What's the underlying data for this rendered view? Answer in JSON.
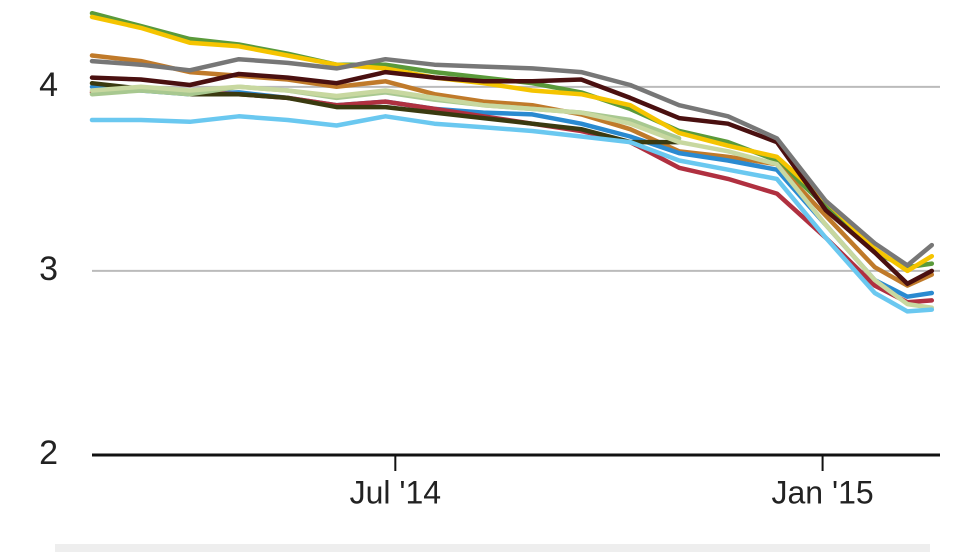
{
  "chart_data": {
    "type": "line",
    "x": [
      0,
      3,
      6,
      9,
      12,
      15,
      18,
      21,
      24,
      27,
      30,
      33,
      36,
      39,
      42,
      45,
      48,
      50,
      51.5
    ],
    "xlim": [
      0,
      52
    ],
    "xticks": [
      {
        "value": 18.6,
        "label": "Jul '14"
      },
      {
        "value": 44.8,
        "label": "Jan '15"
      }
    ],
    "ylim": [
      2,
      4.45
    ],
    "yticks": [
      2,
      3,
      4
    ],
    "grid": true,
    "series": [
      {
        "color": "#5a9a3a",
        "values": [
          4.4,
          4.33,
          4.26,
          4.23,
          4.18,
          4.12,
          4.12,
          4.08,
          4.05,
          4.02,
          3.97,
          3.88,
          3.76,
          3.7,
          3.6,
          3.35,
          3.1,
          3.02,
          3.04
        ]
      },
      {
        "color": "#f5c400",
        "values": [
          4.38,
          4.32,
          4.24,
          4.22,
          4.17,
          4.12,
          4.1,
          4.05,
          4.02,
          3.98,
          3.96,
          3.9,
          3.75,
          3.68,
          3.62,
          3.38,
          3.12,
          3.0,
          3.08
        ]
      },
      {
        "color": "#c07a2a",
        "values": [
          4.17,
          4.14,
          4.08,
          4.06,
          4.04,
          4.0,
          4.03,
          3.96,
          3.92,
          3.9,
          3.85,
          3.77,
          3.65,
          3.62,
          3.58,
          3.3,
          3.02,
          2.92,
          2.98
        ]
      },
      {
        "color": "#2a8ad0",
        "values": [
          4.0,
          3.98,
          3.96,
          3.97,
          3.94,
          3.9,
          3.92,
          3.88,
          3.86,
          3.85,
          3.8,
          3.73,
          3.64,
          3.6,
          3.55,
          3.25,
          2.95,
          2.86,
          2.88
        ]
      },
      {
        "color": "#b03040",
        "values": [
          3.97,
          3.99,
          3.97,
          3.96,
          3.94,
          3.9,
          3.92,
          3.88,
          3.84,
          3.8,
          3.76,
          3.7,
          3.56,
          3.5,
          3.42,
          3.18,
          2.92,
          2.83,
          2.84
        ]
      },
      {
        "color": "#3a3a10",
        "values": [
          4.02,
          3.99,
          3.96,
          3.96,
          3.94,
          3.89,
          3.89,
          3.86,
          3.83,
          3.8,
          3.77,
          3.7,
          3.7,
          null,
          null,
          null,
          null,
          null,
          null
        ]
      },
      {
        "color": "#a8c890",
        "values": [
          3.96,
          3.98,
          3.96,
          4.0,
          3.98,
          3.94,
          3.97,
          3.93,
          3.9,
          3.88,
          3.86,
          3.82,
          3.72,
          null,
          null,
          null,
          null,
          null,
          null
        ]
      },
      {
        "color": "#c8d8a0",
        "values": [
          3.98,
          4.0,
          3.98,
          4.0,
          3.98,
          3.95,
          3.98,
          3.94,
          3.9,
          3.88,
          3.86,
          3.8,
          3.7,
          3.65,
          3.58,
          3.25,
          2.95,
          2.82,
          2.8
        ]
      },
      {
        "color": "#6ac8f0",
        "values": [
          3.82,
          3.82,
          3.81,
          3.84,
          3.82,
          3.79,
          3.84,
          3.8,
          3.78,
          3.76,
          3.73,
          3.7,
          3.6,
          3.55,
          3.5,
          3.18,
          2.88,
          2.78,
          2.79
        ]
      },
      {
        "color": "#4a1010",
        "values": [
          4.05,
          4.04,
          4.01,
          4.07,
          4.05,
          4.02,
          4.08,
          4.05,
          4.03,
          4.03,
          4.04,
          3.94,
          3.83,
          3.8,
          3.7,
          3.33,
          3.1,
          2.93,
          3.0
        ]
      },
      {
        "color": "#777777",
        "values": [
          4.14,
          4.12,
          4.09,
          4.15,
          4.13,
          4.1,
          4.15,
          4.12,
          4.11,
          4.1,
          4.08,
          4.01,
          3.9,
          3.84,
          3.72,
          3.38,
          3.15,
          3.03,
          3.14
        ]
      }
    ]
  }
}
